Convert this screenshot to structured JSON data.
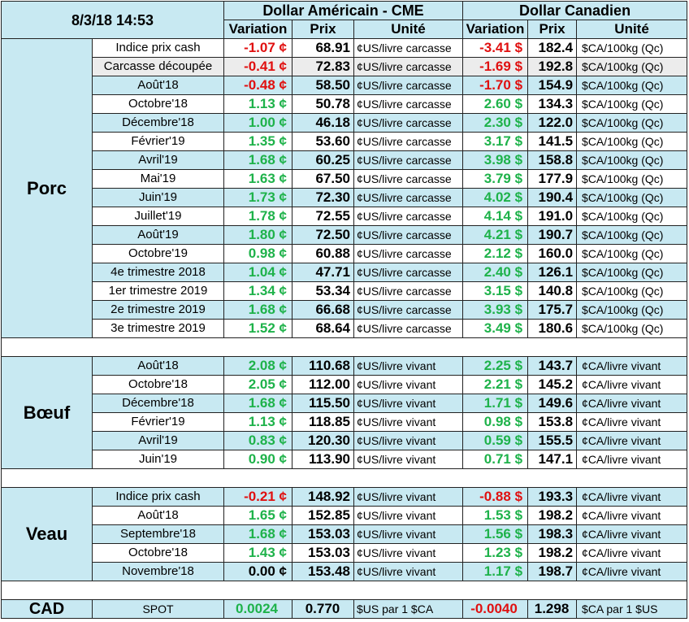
{
  "header": {
    "date": "8/3/18 14:53",
    "us_title": "Dollar Américain - CME",
    "ca_title": "Dollar Canadien",
    "col_variation": "Variation",
    "col_prix": "Prix",
    "col_unite": "Unité"
  },
  "porc": {
    "label": "Porc",
    "rows": [
      {
        "name": "Indice prix cash",
        "us_var": "-1.07 ¢",
        "us_prix": "68.91",
        "us_unit": "¢US/livre carcasse",
        "ca_var": "-3.41 $",
        "ca_prix": "182.4",
        "ca_unit": "$CA/100kg (Qc)",
        "us_sign": "neg",
        "ca_sign": "neg"
      },
      {
        "name": "Carcasse découpée",
        "us_var": "-0.41 ¢",
        "us_prix": "72.83",
        "us_unit": "¢US/livre carcasse",
        "ca_var": "-1.69 $",
        "ca_prix": "192.8",
        "ca_unit": "$CA/100kg (Qc)",
        "us_sign": "neg",
        "ca_sign": "neg"
      },
      {
        "name": "Août'18",
        "us_var": "-0.48 ¢",
        "us_prix": "58.50",
        "us_unit": "¢US/livre carcasse",
        "ca_var": "-1.70 $",
        "ca_prix": "154.9",
        "ca_unit": "$CA/100kg (Qc)",
        "us_sign": "neg",
        "ca_sign": "neg"
      },
      {
        "name": "Octobre'18",
        "us_var": "1.13 ¢",
        "us_prix": "50.78",
        "us_unit": "¢US/livre carcasse",
        "ca_var": "2.60 $",
        "ca_prix": "134.3",
        "ca_unit": "$CA/100kg (Qc)",
        "us_sign": "pos",
        "ca_sign": "pos"
      },
      {
        "name": "Décembre'18",
        "us_var": "1.00 ¢",
        "us_prix": "46.18",
        "us_unit": "¢US/livre carcasse",
        "ca_var": "2.30 $",
        "ca_prix": "122.0",
        "ca_unit": "$CA/100kg (Qc)",
        "us_sign": "pos",
        "ca_sign": "pos"
      },
      {
        "name": "Février'19",
        "us_var": "1.35 ¢",
        "us_prix": "53.60",
        "us_unit": "¢US/livre carcasse",
        "ca_var": "3.17 $",
        "ca_prix": "141.5",
        "ca_unit": "$CA/100kg (Qc)",
        "us_sign": "pos",
        "ca_sign": "pos"
      },
      {
        "name": "Avril'19",
        "us_var": "1.68 ¢",
        "us_prix": "60.25",
        "us_unit": "¢US/livre carcasse",
        "ca_var": "3.98 $",
        "ca_prix": "158.8",
        "ca_unit": "$CA/100kg (Qc)",
        "us_sign": "pos",
        "ca_sign": "pos"
      },
      {
        "name": "Mai'19",
        "us_var": "1.63 ¢",
        "us_prix": "67.50",
        "us_unit": "¢US/livre carcasse",
        "ca_var": "3.79 $",
        "ca_prix": "177.9",
        "ca_unit": "$CA/100kg (Qc)",
        "us_sign": "pos",
        "ca_sign": "pos"
      },
      {
        "name": "Juin'19",
        "us_var": "1.73 ¢",
        "us_prix": "72.30",
        "us_unit": "¢US/livre carcasse",
        "ca_var": "4.02 $",
        "ca_prix": "190.4",
        "ca_unit": "$CA/100kg (Qc)",
        "us_sign": "pos",
        "ca_sign": "pos"
      },
      {
        "name": "Juillet'19",
        "us_var": "1.78 ¢",
        "us_prix": "72.55",
        "us_unit": "¢US/livre carcasse",
        "ca_var": "4.14 $",
        "ca_prix": "191.0",
        "ca_unit": "$CA/100kg (Qc)",
        "us_sign": "pos",
        "ca_sign": "pos"
      },
      {
        "name": "Août'19",
        "us_var": "1.80 ¢",
        "us_prix": "72.50",
        "us_unit": "¢US/livre carcasse",
        "ca_var": "4.21 $",
        "ca_prix": "190.7",
        "ca_unit": "$CA/100kg (Qc)",
        "us_sign": "pos",
        "ca_sign": "pos"
      },
      {
        "name": "Octobre'19",
        "us_var": "0.98 ¢",
        "us_prix": "60.88",
        "us_unit": "¢US/livre carcasse",
        "ca_var": "2.12 $",
        "ca_prix": "160.0",
        "ca_unit": "$CA/100kg (Qc)",
        "us_sign": "pos",
        "ca_sign": "pos"
      },
      {
        "name": "4e trimestre 2018",
        "us_var": "1.04 ¢",
        "us_prix": "47.71",
        "us_unit": "¢US/livre carcasse",
        "ca_var": "2.40 $",
        "ca_prix": "126.1",
        "ca_unit": "$CA/100kg (Qc)",
        "us_sign": "pos",
        "ca_sign": "pos"
      },
      {
        "name": "1er trimestre 2019",
        "us_var": "1.34 ¢",
        "us_prix": "53.34",
        "us_unit": "¢US/livre carcasse",
        "ca_var": "3.15 $",
        "ca_prix": "140.8",
        "ca_unit": "$CA/100kg (Qc)",
        "us_sign": "pos",
        "ca_sign": "pos"
      },
      {
        "name": "2e trimestre 2019",
        "us_var": "1.68 ¢",
        "us_prix": "66.68",
        "us_unit": "¢US/livre carcasse",
        "ca_var": "3.93 $",
        "ca_prix": "175.7",
        "ca_unit": "$CA/100kg (Qc)",
        "us_sign": "pos",
        "ca_sign": "pos"
      },
      {
        "name": "3e trimestre 2019",
        "us_var": "1.52 ¢",
        "us_prix": "68.64",
        "us_unit": "¢US/livre carcasse",
        "ca_var": "3.49 $",
        "ca_prix": "180.6",
        "ca_unit": "$CA/100kg (Qc)",
        "us_sign": "pos",
        "ca_sign": "pos"
      }
    ]
  },
  "boeuf": {
    "label": "Bœuf",
    "rows": [
      {
        "name": "Août'18",
        "us_var": "2.08 ¢",
        "us_prix": "110.68",
        "us_unit": "¢US/livre vivant",
        "ca_var": "2.25 $",
        "ca_prix": "143.7",
        "ca_unit": "¢CA/livre vivant",
        "us_sign": "pos",
        "ca_sign": "pos"
      },
      {
        "name": "Octobre'18",
        "us_var": "2.05 ¢",
        "us_prix": "112.00",
        "us_unit": "¢US/livre vivant",
        "ca_var": "2.21 $",
        "ca_prix": "145.2",
        "ca_unit": "¢CA/livre vivant",
        "us_sign": "pos",
        "ca_sign": "pos"
      },
      {
        "name": "Décembre'18",
        "us_var": "1.68 ¢",
        "us_prix": "115.50",
        "us_unit": "¢US/livre vivant",
        "ca_var": "1.71 $",
        "ca_prix": "149.6",
        "ca_unit": "¢CA/livre vivant",
        "us_sign": "pos",
        "ca_sign": "pos"
      },
      {
        "name": "Février'19",
        "us_var": "1.13 ¢",
        "us_prix": "118.85",
        "us_unit": "¢US/livre vivant",
        "ca_var": "0.98 $",
        "ca_prix": "153.8",
        "ca_unit": "¢CA/livre vivant",
        "us_sign": "pos",
        "ca_sign": "pos"
      },
      {
        "name": "Avril'19",
        "us_var": "0.83 ¢",
        "us_prix": "120.30",
        "us_unit": "¢US/livre vivant",
        "ca_var": "0.59 $",
        "ca_prix": "155.5",
        "ca_unit": "¢CA/livre vivant",
        "us_sign": "pos",
        "ca_sign": "pos"
      },
      {
        "name": "Juin'19",
        "us_var": "0.90 ¢",
        "us_prix": "113.90",
        "us_unit": "¢US/livre vivant",
        "ca_var": "0.71 $",
        "ca_prix": "147.1",
        "ca_unit": "¢CA/livre vivant",
        "us_sign": "pos",
        "ca_sign": "pos"
      }
    ]
  },
  "veau": {
    "label": "Veau",
    "rows": [
      {
        "name": "Indice prix cash",
        "us_var": "-0.21 ¢",
        "us_prix": "148.92",
        "us_unit": "¢US/livre vivant",
        "ca_var": "-0.88 $",
        "ca_prix": "193.3",
        "ca_unit": "¢CA/livre vivant",
        "us_sign": "neg",
        "ca_sign": "neg"
      },
      {
        "name": "Août'18",
        "us_var": "1.65 ¢",
        "us_prix": "152.85",
        "us_unit": "¢US/livre vivant",
        "ca_var": "1.53 $",
        "ca_prix": "198.2",
        "ca_unit": "¢CA/livre vivant",
        "us_sign": "pos",
        "ca_sign": "pos"
      },
      {
        "name": "Septembre'18",
        "us_var": "1.68 ¢",
        "us_prix": "153.03",
        "us_unit": "¢US/livre vivant",
        "ca_var": "1.56 $",
        "ca_prix": "198.3",
        "ca_unit": "¢CA/livre vivant",
        "us_sign": "pos",
        "ca_sign": "pos"
      },
      {
        "name": "Octobre'18",
        "us_var": "1.43 ¢",
        "us_prix": "153.03",
        "us_unit": "¢US/livre vivant",
        "ca_var": "1.23 $",
        "ca_prix": "198.2",
        "ca_unit": "¢CA/livre vivant",
        "us_sign": "pos",
        "ca_sign": "pos"
      },
      {
        "name": "Novembre'18",
        "us_var": "0.00 ¢",
        "us_prix": "153.48",
        "us_unit": "¢US/livre vivant",
        "ca_var": "1.17 $",
        "ca_prix": "198.7",
        "ca_unit": "¢CA/livre vivant",
        "us_sign": "zero",
        "ca_sign": "pos"
      }
    ]
  },
  "cad": {
    "label": "CAD",
    "name": "SPOT",
    "us_var": "0.0024",
    "us_prix": "0.770",
    "us_unit": "$US par 1 $CA",
    "ca_var": "-0.0040",
    "ca_prix": "1.298",
    "ca_unit": "$CA par 1 $US",
    "us_sign": "pos",
    "ca_sign": "neg"
  },
  "colors": {
    "shade": "#c8e9f2",
    "positive": "#1eb24a",
    "negative": "#e01010"
  }
}
